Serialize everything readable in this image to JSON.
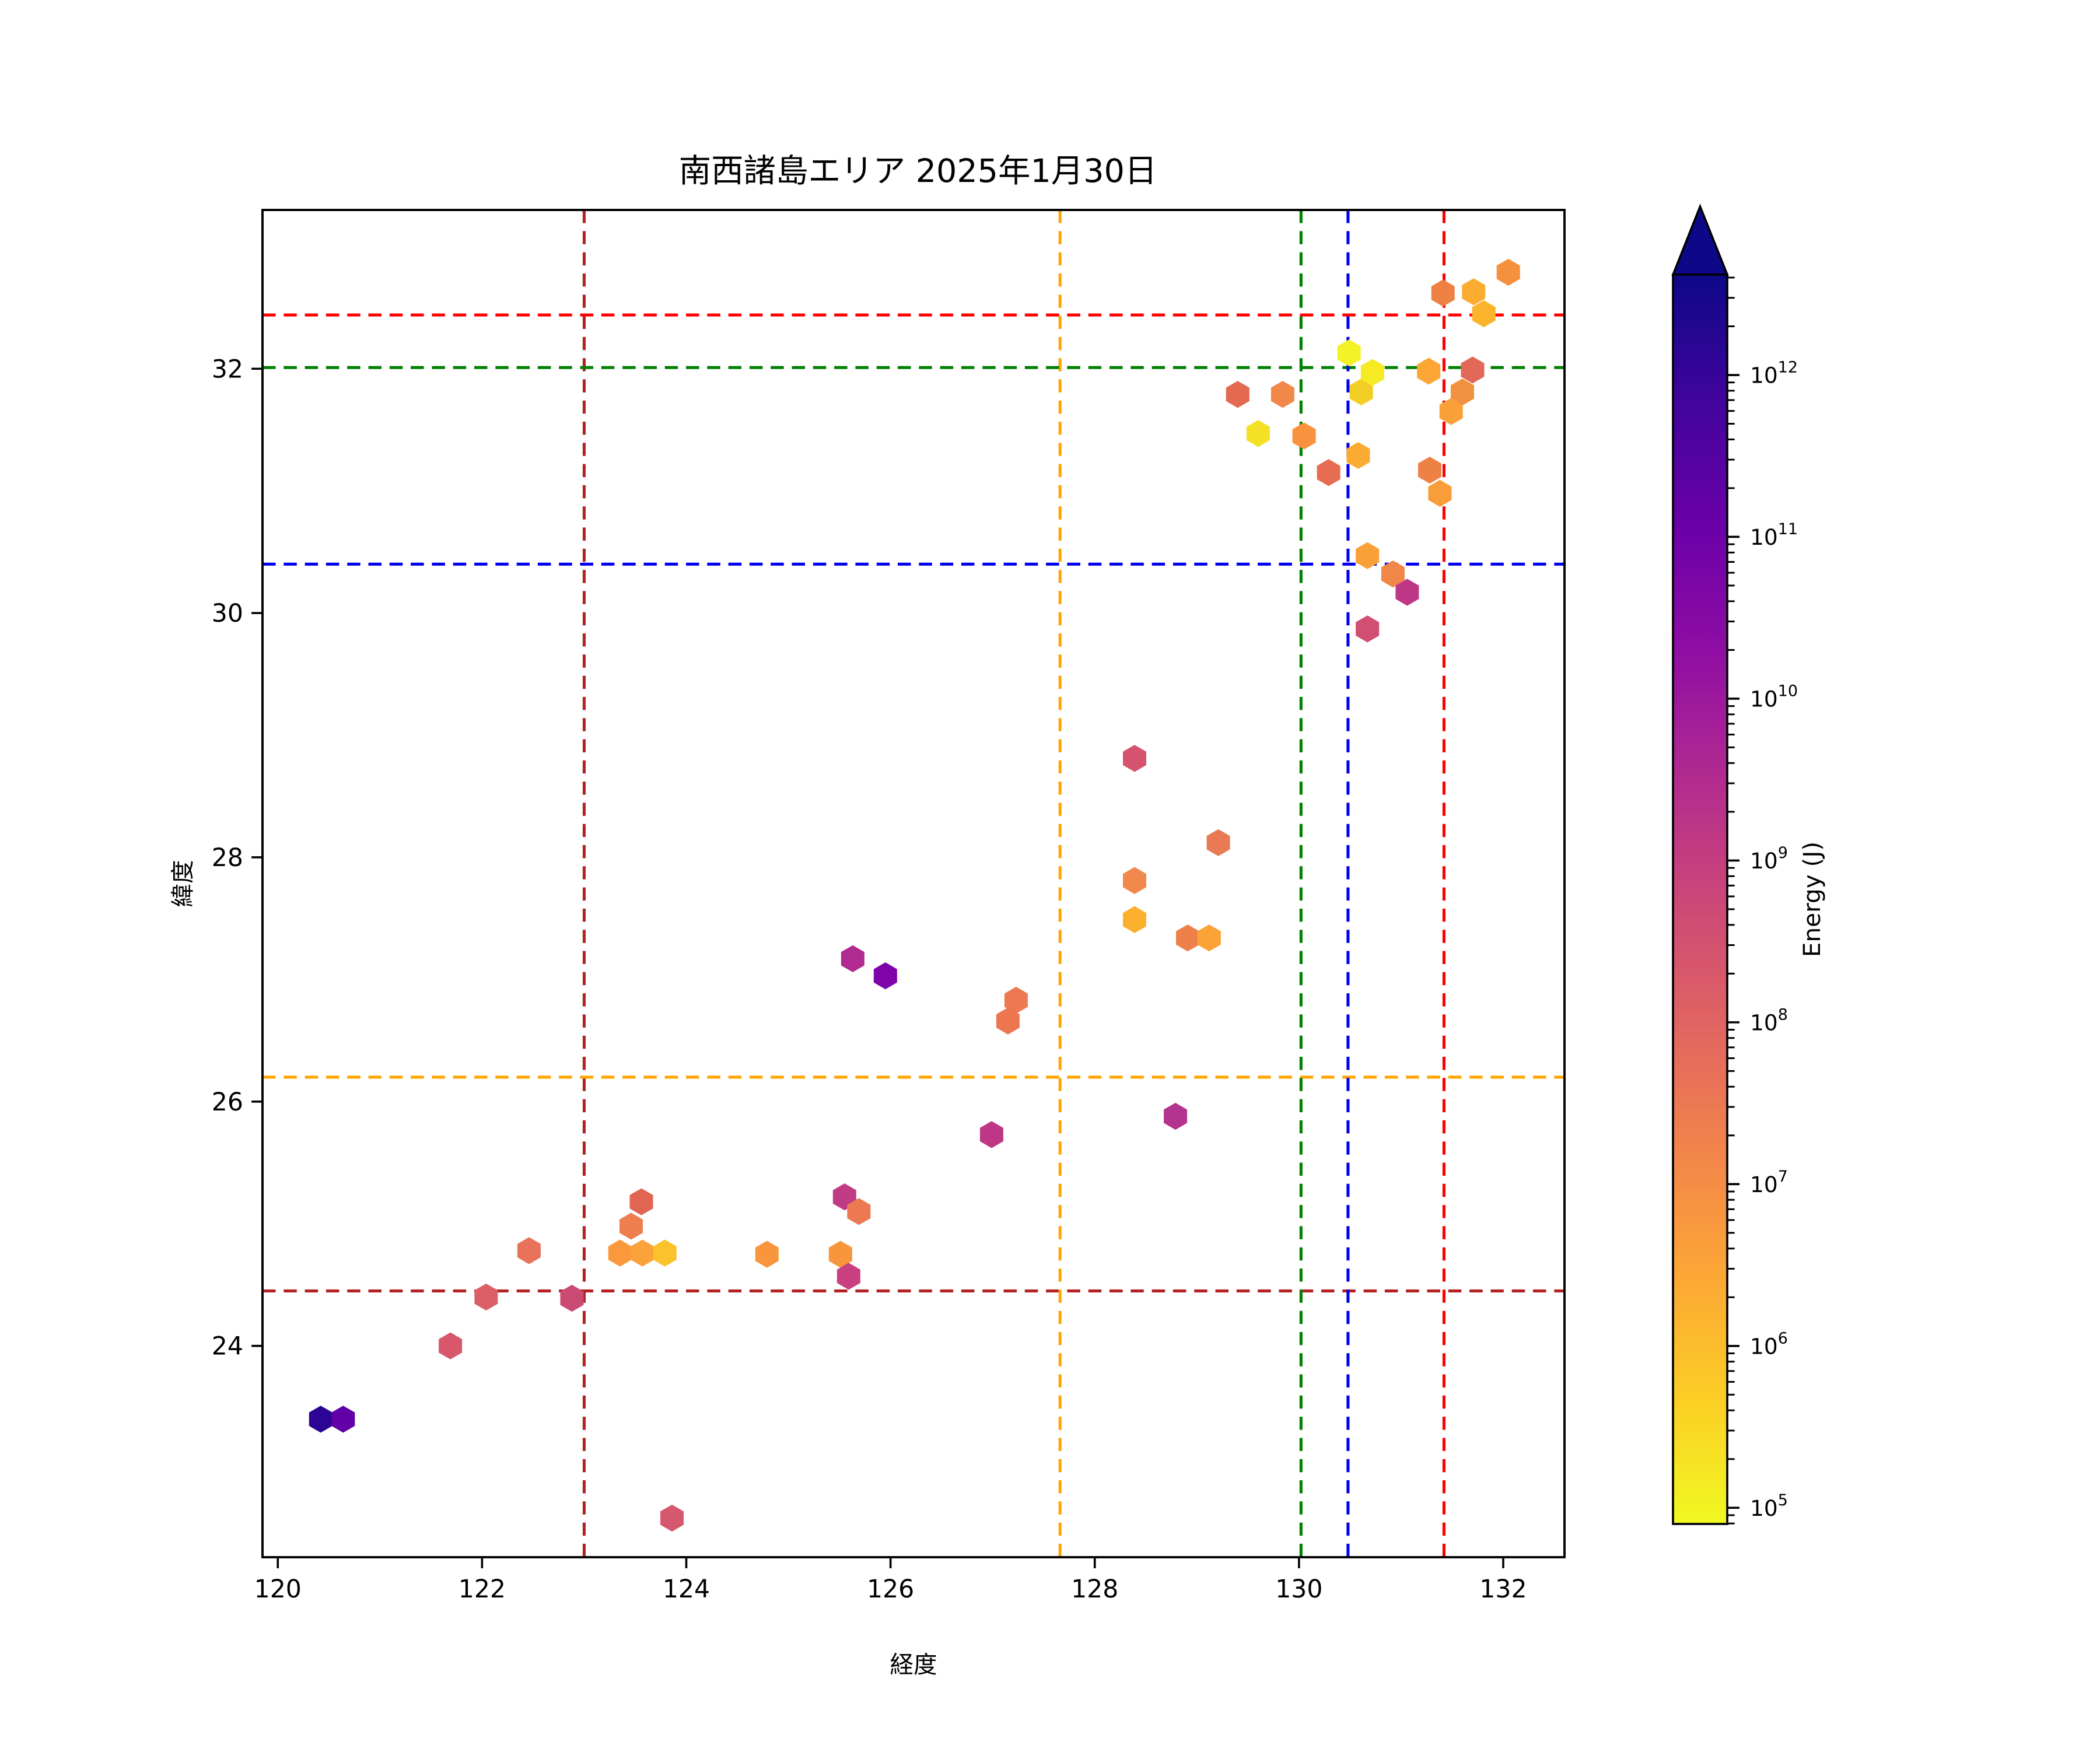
{
  "title": "南西諸島エリア 2025年1月30日",
  "chart_data": {
    "type": "scatter",
    "title": "南西諸島エリア 2025年1月30日",
    "xlabel": "経度",
    "ylabel": "緯度",
    "xlim": [
      119.85,
      132.6
    ],
    "ylim": [
      22.27,
      33.3
    ],
    "xticks": [
      120,
      122,
      124,
      126,
      128,
      130,
      132
    ],
    "yticks": [
      24,
      26,
      28,
      30,
      32
    ],
    "grid": false,
    "legend": false,
    "marker": {
      "shape": "hexagon",
      "radius_px": 7.7
    },
    "colorbar": {
      "label": "Energy (J)",
      "scale": "log",
      "colormap": "plasma_r",
      "extend": "max",
      "tick_exponents": [
        5,
        6,
        7,
        8,
        9,
        10,
        11,
        12
      ],
      "range_exponents": [
        4.9,
        12.62
      ],
      "gradient_stops": [
        {
          "t": 0.0,
          "color": "#0d0887"
        },
        {
          "t": 0.1,
          "color": "#41049d"
        },
        {
          "t": 0.2,
          "color": "#6a00a8"
        },
        {
          "t": 0.3,
          "color": "#8f0da4"
        },
        {
          "t": 0.4,
          "color": "#b12a90"
        },
        {
          "t": 0.5,
          "color": "#cc4778"
        },
        {
          "t": 0.6,
          "color": "#e16462"
        },
        {
          "t": 0.7,
          "color": "#f2844b"
        },
        {
          "t": 0.8,
          "color": "#fca636"
        },
        {
          "t": 0.9,
          "color": "#fcce25"
        },
        {
          "t": 1.0,
          "color": "#f0f921"
        }
      ]
    },
    "reference_crosshairs": [
      {
        "name": "darkred",
        "color": "#b22222",
        "lon": 123.0,
        "lat": 24.45
      },
      {
        "name": "orange",
        "color": "#ffa500",
        "lon": 127.66,
        "lat": 26.2
      },
      {
        "name": "green",
        "color": "#008000",
        "lon": 130.02,
        "lat": 32.01
      },
      {
        "name": "blue",
        "color": "#0000ee",
        "lon": 130.48,
        "lat": 30.4
      },
      {
        "name": "red",
        "color": "#ff0000",
        "lon": 131.42,
        "lat": 32.44
      }
    ],
    "points": [
      {
        "lon": 120.42,
        "lat": 23.4,
        "energy_j": 1300000000000.0,
        "color": "#2c0594"
      },
      {
        "lon": 120.64,
        "lat": 23.4,
        "energy_j": 220000000000.0,
        "color": "#6100a7"
      },
      {
        "lon": 121.69,
        "lat": 24.0,
        "energy_j": 190000000.0,
        "color": "#d8576b"
      },
      {
        "lon": 122.04,
        "lat": 24.4,
        "energy_j": 120000000.0,
        "color": "#dc5e66"
      },
      {
        "lon": 122.88,
        "lat": 24.39,
        "energy_j": 420000000.0,
        "color": "#c94a73"
      },
      {
        "lon": 122.46,
        "lat": 24.78,
        "energy_j": 49000000.0,
        "color": "#e8735a"
      },
      {
        "lon": 123.86,
        "lat": 22.59,
        "energy_j": 200000000.0,
        "color": "#d5586f"
      },
      {
        "lon": 123.35,
        "lat": 24.76,
        "energy_j": 6200000.0,
        "color": "#f9993c"
      },
      {
        "lon": 123.57,
        "lat": 24.76,
        "energy_j": 4300000.0,
        "color": "#fba23a"
      },
      {
        "lon": 123.79,
        "lat": 24.76,
        "energy_j": 1000000.0,
        "color": "#fcc22c"
      },
      {
        "lon": 123.46,
        "lat": 24.98,
        "energy_j": 23000000.0,
        "color": "#ef7e4e"
      },
      {
        "lon": 123.56,
        "lat": 25.18,
        "energy_j": 83000000.0,
        "color": "#e06553"
      },
      {
        "lon": 124.79,
        "lat": 24.75,
        "energy_j": 6800000.0,
        "color": "#f9963d"
      },
      {
        "lon": 125.51,
        "lat": 24.75,
        "energy_j": 6800000.0,
        "color": "#f9963d"
      },
      {
        "lon": 125.59,
        "lat": 24.57,
        "energy_j": 500000000.0,
        "color": "#c8407f"
      },
      {
        "lon": 125.55,
        "lat": 25.22,
        "energy_j": 790000000.0,
        "color": "#c13b84"
      },
      {
        "lon": 125.69,
        "lat": 25.1,
        "energy_j": 31000000.0,
        "color": "#ed7953"
      },
      {
        "lon": 125.63,
        "lat": 27.17,
        "energy_j": 3000000000.0,
        "color": "#b12a90"
      },
      {
        "lon": 125.95,
        "lat": 27.03,
        "energy_j": 59000000000.0,
        "color": "#7e03a8"
      },
      {
        "lon": 127.23,
        "lat": 26.83,
        "energy_j": 31000000.0,
        "color": "#ed7953"
      },
      {
        "lon": 127.15,
        "lat": 26.66,
        "energy_j": 33000000.0,
        "color": "#ec764f"
      },
      {
        "lon": 126.99,
        "lat": 25.73,
        "energy_j": 1100000000.0,
        "color": "#bd3786"
      },
      {
        "lon": 128.79,
        "lat": 25.88,
        "energy_j": 2000000000.0,
        "color": "#b3348e"
      },
      {
        "lon": 128.39,
        "lat": 28.81,
        "energy_j": 220000000.0,
        "color": "#d5536f"
      },
      {
        "lon": 129.21,
        "lat": 28.12,
        "energy_j": 34000000.0,
        "color": "#e87a54"
      },
      {
        "lon": 128.39,
        "lat": 27.81,
        "energy_j": 14000000.0,
        "color": "#f0894b"
      },
      {
        "lon": 128.39,
        "lat": 27.49,
        "energy_j": 2300000.0,
        "color": "#fbb02e"
      },
      {
        "lon": 128.91,
        "lat": 27.34,
        "energy_j": 20000000.0,
        "color": "#ee8049"
      },
      {
        "lon": 129.12,
        "lat": 27.34,
        "energy_j": 3900000.0,
        "color": "#fba336"
      },
      {
        "lon": 129.4,
        "lat": 31.79,
        "energy_j": 58000000.0,
        "color": "#e36a51"
      },
      {
        "lon": 129.84,
        "lat": 31.79,
        "energy_j": 15000000.0,
        "color": "#f2874a"
      },
      {
        "lon": 129.6,
        "lat": 31.47,
        "energy_j": 200000.0,
        "color": "#f4e126"
      },
      {
        "lon": 130.05,
        "lat": 31.45,
        "energy_j": 7400000.0,
        "color": "#f8923e"
      },
      {
        "lon": 130.49,
        "lat": 32.13,
        "energy_j": 83000.0,
        "color": "#f2f227"
      },
      {
        "lon": 130.61,
        "lat": 31.81,
        "energy_j": 460000.0,
        "color": "#f3cf26"
      },
      {
        "lon": 130.72,
        "lat": 31.97,
        "energy_j": 130000.0,
        "color": "#f6ea25"
      },
      {
        "lon": 130.58,
        "lat": 31.29,
        "energy_j": 2800000.0,
        "color": "#fbab31"
      },
      {
        "lon": 130.29,
        "lat": 31.15,
        "energy_j": 53000000.0,
        "color": "#e66d52"
      },
      {
        "lon": 131.7,
        "lat": 31.99,
        "energy_j": 63000000.0,
        "color": "#e2685a"
      },
      {
        "lon": 131.27,
        "lat": 31.98,
        "energy_j": 3300000.0,
        "color": "#fca735"
      },
      {
        "lon": 131.6,
        "lat": 31.81,
        "energy_j": 8000000.0,
        "color": "#f29140"
      },
      {
        "lon": 131.49,
        "lat": 31.65,
        "energy_j": 4700000.0,
        "color": "#f9a038"
      },
      {
        "lon": 131.28,
        "lat": 31.17,
        "energy_j": 17000000.0,
        "color": "#ee8246"
      },
      {
        "lon": 131.38,
        "lat": 30.98,
        "energy_j": 5600000.0,
        "color": "#f99c3a"
      },
      {
        "lon": 131.41,
        "lat": 32.62,
        "energy_j": 18000000.0,
        "color": "#ee8044"
      },
      {
        "lon": 131.71,
        "lat": 32.63,
        "energy_j": 2800000.0,
        "color": "#fbac31"
      },
      {
        "lon": 131.81,
        "lat": 32.45,
        "energy_j": 1900000.0,
        "color": "#fcb32c"
      },
      {
        "lon": 132.05,
        "lat": 32.79,
        "energy_j": 8000000.0,
        "color": "#f5913d"
      },
      {
        "lon": 130.67,
        "lat": 30.47,
        "energy_j": 4700000.0,
        "color": "#f9a138"
      },
      {
        "lon": 130.92,
        "lat": 30.32,
        "energy_j": 14000000.0,
        "color": "#f08748"
      },
      {
        "lon": 131.06,
        "lat": 30.17,
        "energy_j": 1100000000.0,
        "color": "#bd3786"
      },
      {
        "lon": 130.67,
        "lat": 29.87,
        "energy_j": 300000000.0,
        "color": "#d14f72"
      }
    ]
  }
}
